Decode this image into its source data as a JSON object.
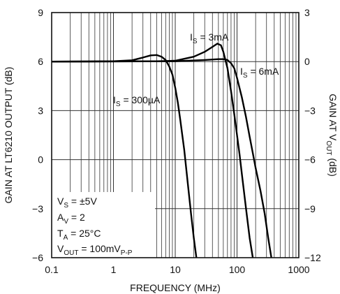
{
  "chart_data": {
    "type": "line",
    "xlabel": "FREQUENCY (MHz)",
    "ylabel": "GAIN AT LT6210 OUTPUT (dB)",
    "y2label_main": "GAIN AT V",
    "y2label_sub": "OUT",
    "y2label_end": " (dB)",
    "x_scale": "log",
    "xlim": [
      0.1,
      1000
    ],
    "ylim": [
      -6,
      9
    ],
    "y2lim": [
      -12,
      3
    ],
    "grid": true,
    "x_ticks": [
      "0.1",
      "1",
      "10",
      "100",
      "1000"
    ],
    "y_ticks": [
      "−6",
      "−3",
      "0",
      "3",
      "6",
      "9"
    ],
    "y2_ticks": [
      "−12",
      "−9",
      "−6",
      "−3",
      "0",
      "3"
    ],
    "series": [
      {
        "name": "IS = 300µA",
        "label_main": "I",
        "label_sub": "S",
        "label_end": " = 300µA",
        "axis": "left",
        "points": [
          [
            0.1,
            6.0
          ],
          [
            1,
            6.02
          ],
          [
            2,
            6.08
          ],
          [
            3,
            6.25
          ],
          [
            4,
            6.38
          ],
          [
            5,
            6.4
          ],
          [
            6,
            6.3
          ],
          [
            7,
            6.1
          ],
          [
            8,
            5.7
          ],
          [
            9,
            5.2
          ],
          [
            10,
            4.4
          ],
          [
            11,
            3.5
          ],
          [
            12,
            2.5
          ],
          [
            14,
            0.6
          ],
          [
            16,
            -1.5
          ],
          [
            18,
            -3.3
          ],
          [
            20,
            -4.8
          ],
          [
            22,
            -6.0
          ]
        ]
      },
      {
        "name": "IS = 3mA",
        "label_main": "I",
        "label_sub": "S",
        "label_end": " = 3mA",
        "axis": "left",
        "points": [
          [
            0.1,
            6.0
          ],
          [
            5,
            6.02
          ],
          [
            10,
            6.05
          ],
          [
            20,
            6.3
          ],
          [
            30,
            6.6
          ],
          [
            40,
            6.9
          ],
          [
            48,
            7.1
          ],
          [
            55,
            7.0
          ],
          [
            60,
            6.6
          ],
          [
            70,
            5.6
          ],
          [
            80,
            4.2
          ],
          [
            90,
            2.8
          ],
          [
            100,
            1.5
          ],
          [
            110,
            0.3
          ],
          [
            120,
            -0.9
          ],
          [
            140,
            -3.0
          ],
          [
            160,
            -4.8
          ],
          [
            180,
            -6.0
          ]
        ]
      },
      {
        "name": "IS = 6mA",
        "label_main": "I",
        "label_sub": "S",
        "label_end": " = 6mA",
        "axis": "left",
        "points": [
          [
            0.1,
            6.0
          ],
          [
            10,
            6.02
          ],
          [
            30,
            6.1
          ],
          [
            50,
            6.15
          ],
          [
            60,
            6.15
          ],
          [
            70,
            6.1
          ],
          [
            80,
            5.9
          ],
          [
            90,
            5.6
          ],
          [
            100,
            5.0
          ],
          [
            120,
            3.8
          ],
          [
            140,
            2.6
          ],
          [
            160,
            1.4
          ],
          [
            180,
            0.4
          ],
          [
            200,
            -0.5
          ],
          [
            240,
            -1.9
          ],
          [
            280,
            -3.3
          ],
          [
            320,
            -4.8
          ],
          [
            360,
            -6.0
          ]
        ]
      }
    ],
    "conditions": [
      {
        "main": "V",
        "sub": "S",
        "end": " = ±5V",
        "end_sub": ""
      },
      {
        "main": "A",
        "sub": "V",
        "end": " = 2",
        "end_sub": ""
      },
      {
        "main": "T",
        "sub": "A",
        "end": " = 25°C",
        "end_sub": ""
      },
      {
        "main": "V",
        "sub": "OUT",
        "end": " = 100mV",
        "end_sub": "P-P"
      }
    ]
  }
}
